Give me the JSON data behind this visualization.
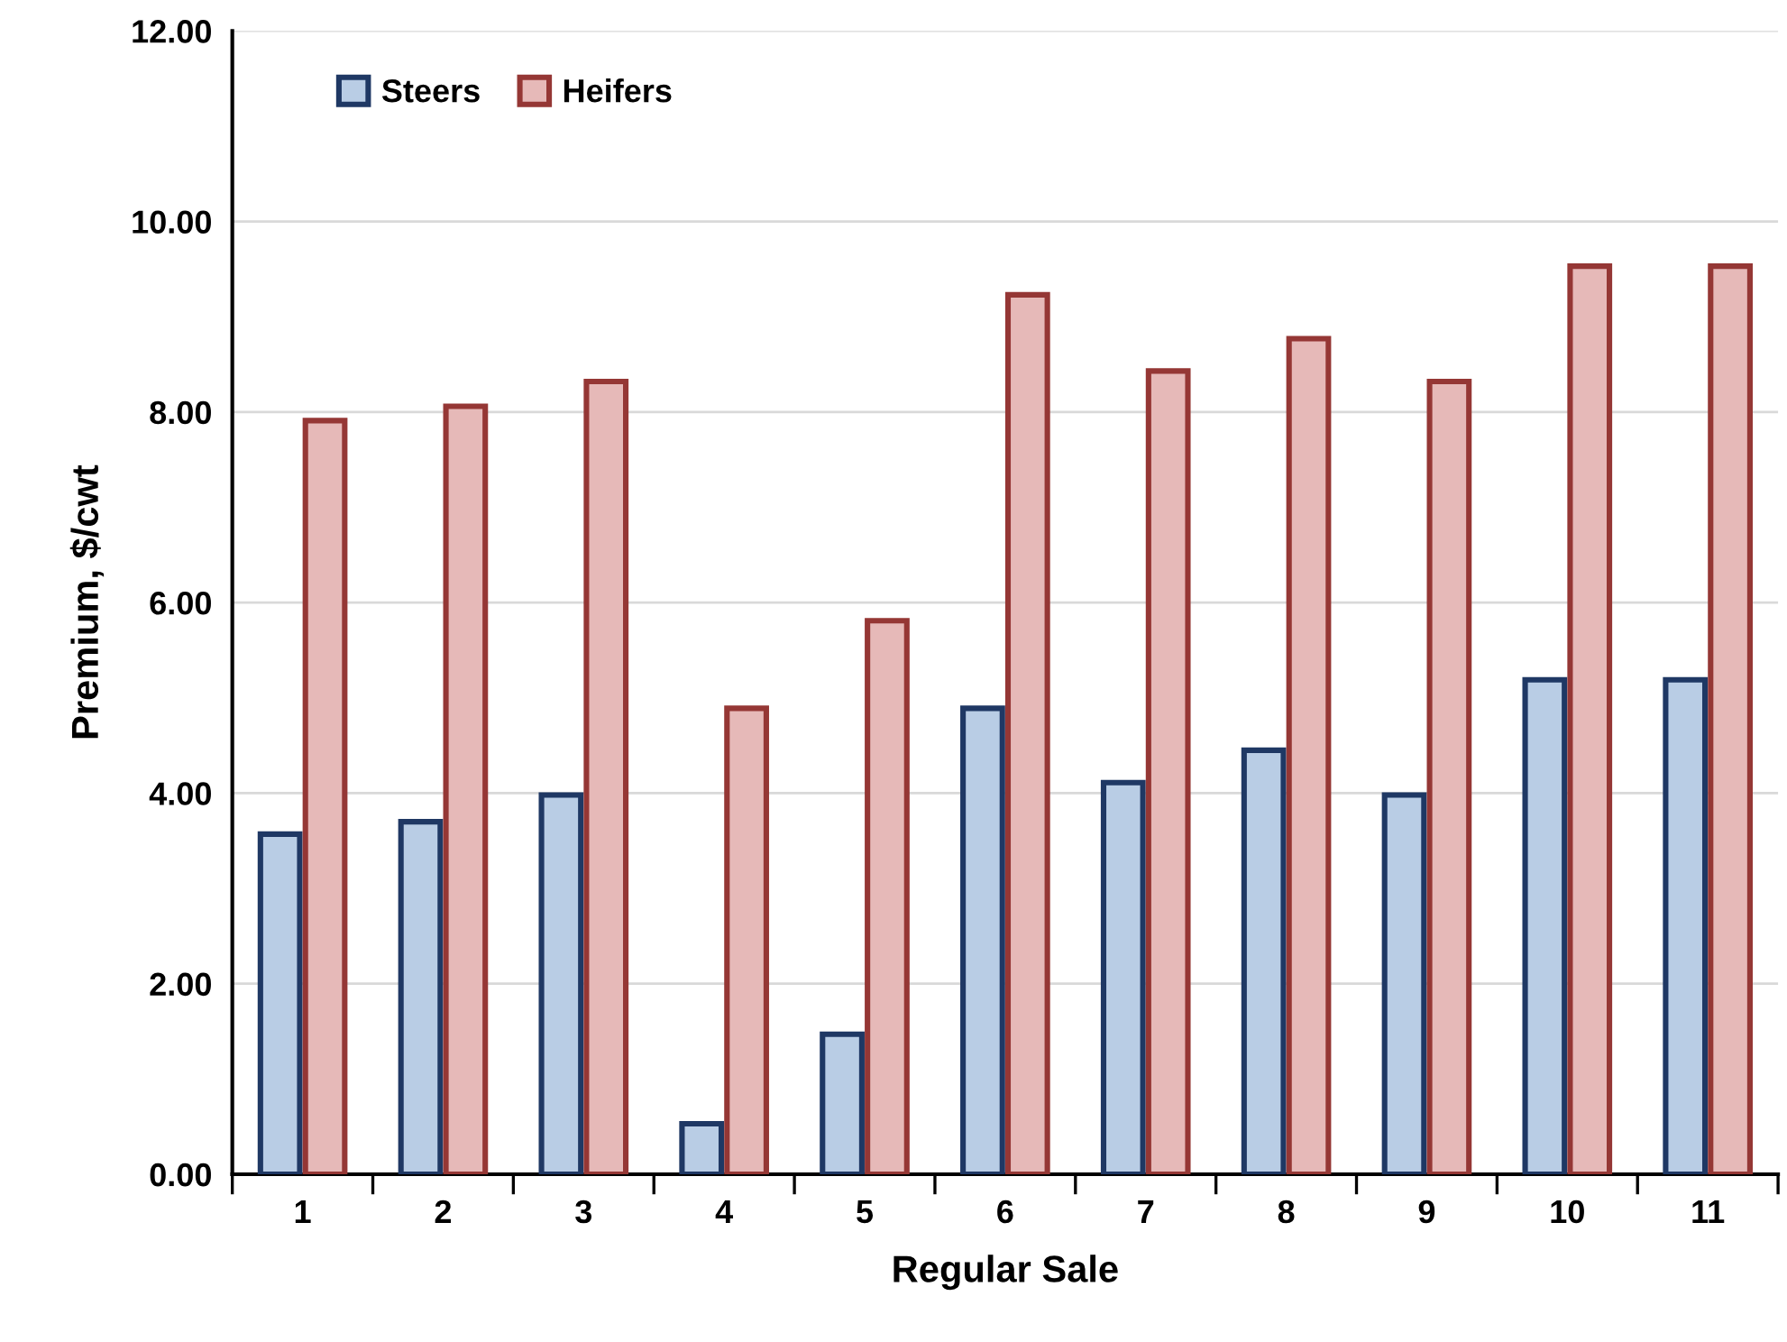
{
  "chart_data": {
    "type": "bar",
    "xlabel": "Regular Sale",
    "ylabel": "Premium, $/cwt",
    "categories": [
      "1",
      "2",
      "3",
      "4",
      "5",
      "6",
      "7",
      "8",
      "9",
      "10",
      "11"
    ],
    "series": [
      {
        "name": "Steers",
        "color": "#b9cde5",
        "values": [
          3.57,
          3.7,
          3.98,
          0.53,
          1.47,
          4.89,
          4.11,
          4.45,
          3.98,
          5.19,
          5.19
        ]
      },
      {
        "name": "Heifers",
        "color": "#e6b9b8",
        "values": [
          7.91,
          8.06,
          8.32,
          4.89,
          5.81,
          9.23,
          8.43,
          8.77,
          8.32,
          9.53,
          9.53
        ]
      }
    ],
    "ylim": [
      0,
      12
    ],
    "yticks": [
      {
        "value": 0,
        "label": "0.00"
      },
      {
        "value": 2,
        "label": "2.00"
      },
      {
        "value": 4,
        "label": "4.00"
      },
      {
        "value": 6,
        "label": "6.00"
      },
      {
        "value": 8,
        "label": "8.00"
      },
      {
        "value": 10,
        "label": "10.00"
      },
      {
        "value": 12,
        "label": "12.00"
      }
    ],
    "grid": "y",
    "legend": "top left"
  }
}
